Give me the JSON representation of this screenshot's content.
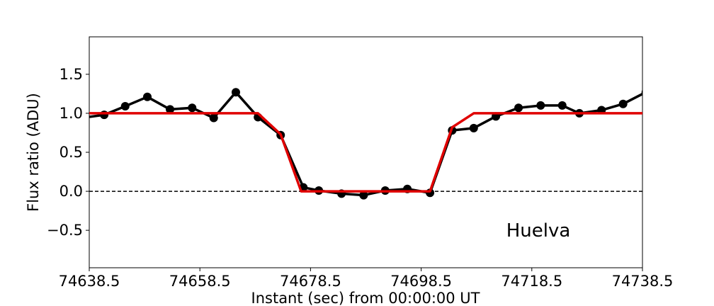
{
  "chart_data": {
    "type": "line",
    "xlabel": "Instant (sec) from 00:00:00 UT",
    "ylabel": "Flux ratio (ADU)",
    "annotation": "Huelva",
    "xlim": [
      74638.5,
      74738.5
    ],
    "xticks": [
      74638.5,
      74658.5,
      74678.5,
      74698.5,
      74718.5,
      74738.5
    ],
    "ylim": [
      -0.98,
      1.98
    ],
    "yticks": [
      {
        "value": -0.5,
        "label": "−0.5"
      },
      {
        "value": 0.0,
        "label": "0.0"
      },
      0.5,
      {
        "value": 1.0,
        "label": "1.0"
      },
      1.5
    ],
    "hline": 0,
    "series": [
      {
        "color": "#000000",
        "markers": true,
        "x": [
          74637.1,
          74641.2,
          74645.0,
          74649.0,
          74653.1,
          74657.1,
          74661.0,
          74665.0,
          74669.0,
          74673.1,
          74677.2,
          74680.0,
          74684.1,
          74688.1,
          74692.0,
          74696.0,
          74700.1,
          74704.1,
          74708.0,
          74712.0,
          74716.1,
          74720.1,
          74724.0,
          74727.1,
          74731.1,
          74735.0,
          74739.1
        ],
        "values": [
          0.94,
          0.98,
          1.09,
          1.21,
          1.05,
          1.07,
          0.94,
          1.27,
          0.95,
          0.72,
          0.05,
          0.01,
          -0.03,
          -0.05,
          0.01,
          0.03,
          -0.02,
          0.78,
          0.81,
          0.96,
          1.07,
          1.1,
          1.1,
          1.0,
          1.04,
          1.12,
          1.27
        ]
      },
      {
        "color": "#e00000",
        "markers": false,
        "x": [
          74638.5,
          74669.0,
          74673.1,
          74676.8,
          74700.1,
          74704.1,
          74708.0,
          74738.5
        ],
        "values": [
          1.0,
          1.0,
          0.73,
          0.0,
          0.0,
          0.82,
          1.0,
          1.0
        ]
      }
    ]
  }
}
